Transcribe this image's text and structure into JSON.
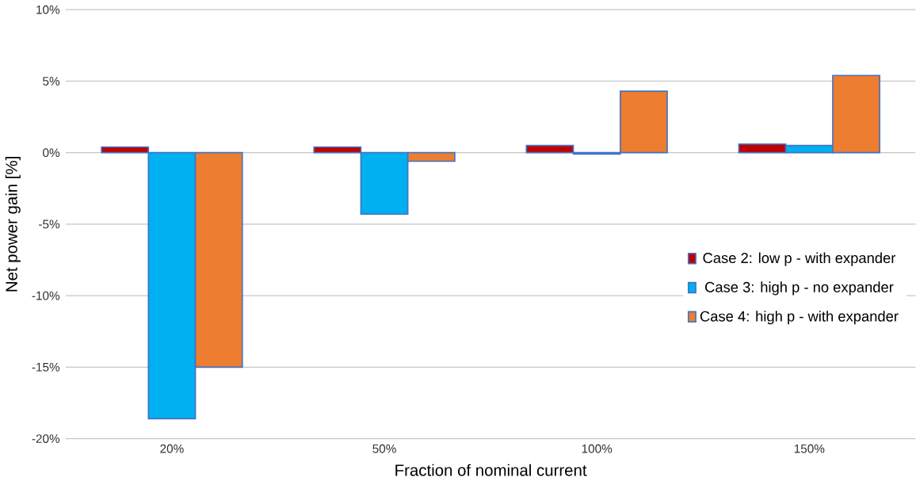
{
  "chart_data": {
    "type": "bar",
    "xlabel": "Fraction of nominal current",
    "ylabel": "Net power gain [%]",
    "categories": [
      "20%",
      "50%",
      "100%",
      "150%"
    ],
    "series": [
      {
        "name": "Case 2:  low p - with expander",
        "color": "#c00000",
        "values": [
          0.4,
          0.4,
          0.5,
          0.6
        ]
      },
      {
        "name": "Case 3:  high p - no expander",
        "color": "#00b0f0",
        "values": [
          -18.6,
          -4.3,
          -0.1,
          0.5
        ]
      },
      {
        "name": "Case 4:  high p - with expander",
        "color": "#ed7d31",
        "values": [
          -15.0,
          -0.6,
          4.3,
          5.4
        ]
      }
    ],
    "ylim": [
      -20,
      10
    ],
    "yticks": [
      {
        "value": -20,
        "label": "-20%"
      },
      {
        "value": -15,
        "label": "-15%"
      },
      {
        "value": -10,
        "label": "-10%"
      },
      {
        "value": -5,
        "label": "-5%"
      },
      {
        "value": 0,
        "label": "0%"
      },
      {
        "value": 5,
        "label": "5%"
      },
      {
        "value": 10,
        "label": "10%"
      }
    ],
    "grid": "y",
    "legend": "right"
  }
}
